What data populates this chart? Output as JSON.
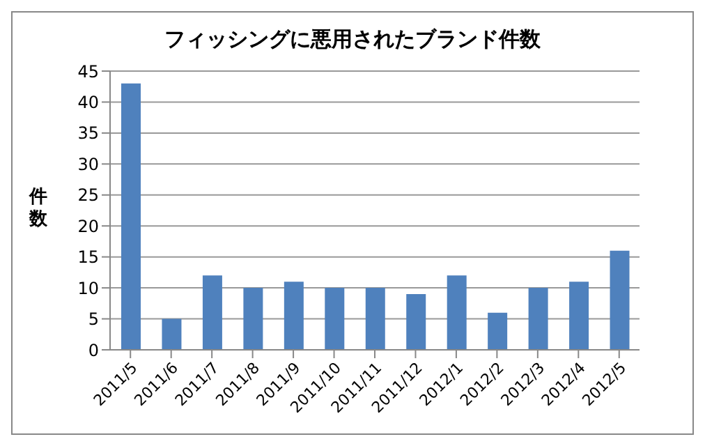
{
  "chart_data": {
    "type": "bar",
    "title": "フィッシングに悪用されたブランド件数",
    "ylabel": "件数",
    "categories": [
      "2011/5",
      "2011/6",
      "2011/7",
      "2011/8",
      "2011/9",
      "2011/10",
      "2011/11",
      "2011/12",
      "2012/1",
      "2012/2",
      "2012/3",
      "2012/4",
      "2012/5"
    ],
    "values": [
      43,
      5,
      12,
      10,
      11,
      10,
      10,
      9,
      12,
      6,
      10,
      11,
      16
    ],
    "color": "#4f81bd",
    "ylim": [
      0,
      45
    ],
    "yticks": [
      0,
      5,
      10,
      15,
      20,
      25,
      30,
      35,
      40,
      45
    ],
    "grid": "y",
    "legend": false
  }
}
